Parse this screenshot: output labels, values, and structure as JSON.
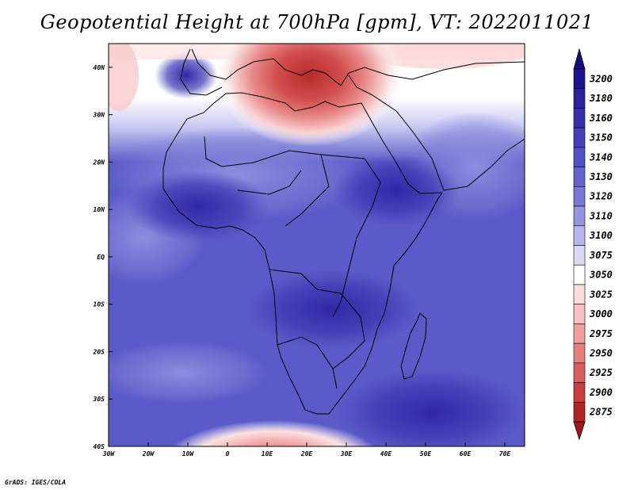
{
  "title": "Geopotential Height at 700hPa [gpm], VT: 2022011021",
  "footer": "GrADS: IGES/COLA",
  "map": {
    "lon_range": [
      -30,
      75
    ],
    "lat_range": [
      -40,
      45
    ],
    "lon_ticks": [
      {
        "value": -30,
        "label": "30W"
      },
      {
        "value": -20,
        "label": "20W"
      },
      {
        "value": -10,
        "label": "10W"
      },
      {
        "value": 0,
        "label": "0"
      },
      {
        "value": 10,
        "label": "10E"
      },
      {
        "value": 20,
        "label": "20E"
      },
      {
        "value": 30,
        "label": "30E"
      },
      {
        "value": 40,
        "label": "40E"
      },
      {
        "value": 50,
        "label": "50E"
      },
      {
        "value": 60,
        "label": "60E"
      },
      {
        "value": 70,
        "label": "70E"
      }
    ],
    "lat_ticks": [
      {
        "value": 40,
        "label": "40N"
      },
      {
        "value": 30,
        "label": "30N"
      },
      {
        "value": 20,
        "label": "20N"
      },
      {
        "value": 10,
        "label": "10N"
      },
      {
        "value": 0,
        "label": "EQ"
      },
      {
        "value": -10,
        "label": "10S"
      },
      {
        "value": -20,
        "label": "20S"
      },
      {
        "value": -30,
        "label": "30S"
      },
      {
        "value": -40,
        "label": "40S"
      }
    ]
  },
  "colorbar": {
    "levels": [
      {
        "label": "3200",
        "color": "#1e1490"
      },
      {
        "label": "3180",
        "color": "#2a219f"
      },
      {
        "label": "3160",
        "color": "#3630ac"
      },
      {
        "label": "3150",
        "color": "#4340b8"
      },
      {
        "label": "3140",
        "color": "#5251c3"
      },
      {
        "label": "3130",
        "color": "#6464cd"
      },
      {
        "label": "3120",
        "color": "#7878d6"
      },
      {
        "label": "3110",
        "color": "#9595e2"
      },
      {
        "label": "3100",
        "color": "#b6b6ec"
      },
      {
        "label": "3075",
        "color": "#d9d9f6"
      },
      {
        "label": "3050",
        "color": "#ffffff"
      },
      {
        "label": "3025",
        "color": "#fbdcdc"
      },
      {
        "label": "3000",
        "color": "#f6c0c0"
      },
      {
        "label": "2975",
        "color": "#eea0a0"
      },
      {
        "label": "2950",
        "color": "#e48080"
      },
      {
        "label": "2925",
        "color": "#d85f5f"
      },
      {
        "label": "2900",
        "color": "#c83e3e"
      },
      {
        "label": "2875",
        "color": "#b32424"
      }
    ],
    "top_color": "#140c80",
    "bottom_color": "#a01818"
  }
}
